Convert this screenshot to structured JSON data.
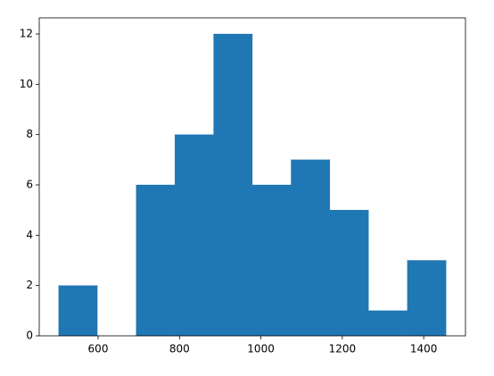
{
  "chart_data": {
    "type": "histogram",
    "bins": [
      503,
      598.2,
      693.4,
      788.6,
      883.8,
      979,
      1074.2,
      1169.4,
      1264.6,
      1359.8,
      1455
    ],
    "values": [
      2,
      0,
      6,
      8,
      12,
      6,
      7,
      5,
      1,
      3
    ],
    "color": "#1f77b4",
    "xlim": [
      455.4,
      1502.6
    ],
    "xticks": [
      600,
      800,
      1000,
      1200,
      1400
    ],
    "ylim": [
      0,
      12.64
    ],
    "yticks": [
      0,
      2,
      4,
      6,
      8,
      10,
      12
    ],
    "grid": false
  }
}
